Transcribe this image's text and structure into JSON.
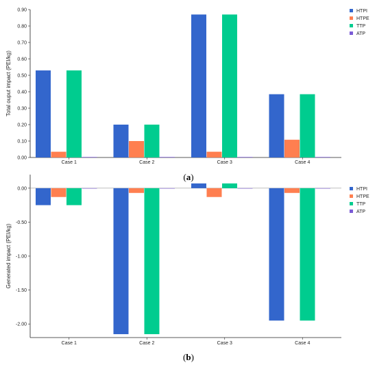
{
  "chart_data": [
    {
      "type": "bar",
      "categories": [
        "Case 1",
        "Case 2",
        "Case 3",
        "Case 4"
      ],
      "series": [
        {
          "name": "HTPI",
          "values": [
            0.53,
            0.2,
            0.87,
            0.385
          ]
        },
        {
          "name": "HTPE",
          "values": [
            0.035,
            0.1,
            0.035,
            0.108
          ]
        },
        {
          "name": "TTP",
          "values": [
            0.53,
            0.2,
            0.87,
            0.385
          ]
        },
        {
          "name": "ATP",
          "values": [
            0.003,
            0.003,
            0.003,
            0.003
          ]
        }
      ],
      "ylabel": "Total ouput impact (PEI/kg)",
      "ylim": [
        0,
        0.9
      ],
      "yticks": [
        "0.00",
        "0.10",
        "0.20",
        "0.30",
        "0.40",
        "0.50",
        "0.60",
        "0.70",
        "0.80",
        "0.90"
      ],
      "caption": "(a)",
      "legend": "top-right",
      "grid": false
    },
    {
      "type": "bar",
      "categories": [
        "Case 1",
        "Case 2",
        "Case 3",
        "Case 4"
      ],
      "series": [
        {
          "name": "HTPI",
          "values": [
            -0.25,
            -2.15,
            0.07,
            -1.95
          ]
        },
        {
          "name": "HTPE",
          "values": [
            -0.13,
            -0.07,
            -0.13,
            -0.07
          ]
        },
        {
          "name": "TTP",
          "values": [
            -0.25,
            -2.15,
            0.07,
            -1.95
          ]
        },
        {
          "name": "ATP",
          "values": [
            -0.005,
            -0.005,
            -0.005,
            -0.005
          ]
        }
      ],
      "ylabel": "Generated impact (PEI/kg)",
      "ylim": [
        -2.2,
        0.2
      ],
      "yticks": [
        "0.00",
        "-0.50",
        "-1.00",
        "-1.50",
        "-2.00"
      ],
      "caption": "(b)",
      "legend": "top-right",
      "grid": false
    }
  ],
  "colors": {
    "HTPI": "#3366cc",
    "HTPE": "#ff7f50",
    "TTP": "#00cc8f",
    "ATP": "#7b5bd6"
  }
}
